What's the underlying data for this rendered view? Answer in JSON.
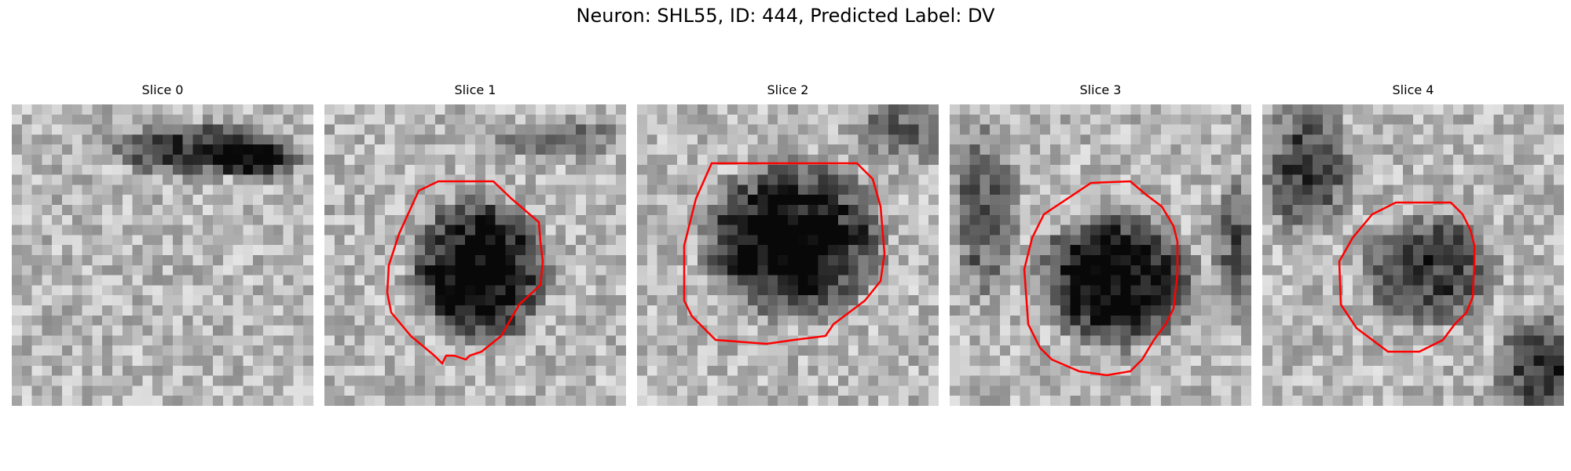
{
  "figure": {
    "title": "Neuron: SHL55, ID: 444, Predicted Label: DV"
  },
  "panels": [
    {
      "title": "Slice 0",
      "has_contour": false
    },
    {
      "title": "Slice 1",
      "has_contour": true
    },
    {
      "title": "Slice 2",
      "has_contour": true
    },
    {
      "title": "Slice 3",
      "has_contour": true
    },
    {
      "title": "Slice 4",
      "has_contour": true
    }
  ],
  "colors": {
    "contour": "#ff0000",
    "background": "#ffffff"
  },
  "colormap": "gray"
}
